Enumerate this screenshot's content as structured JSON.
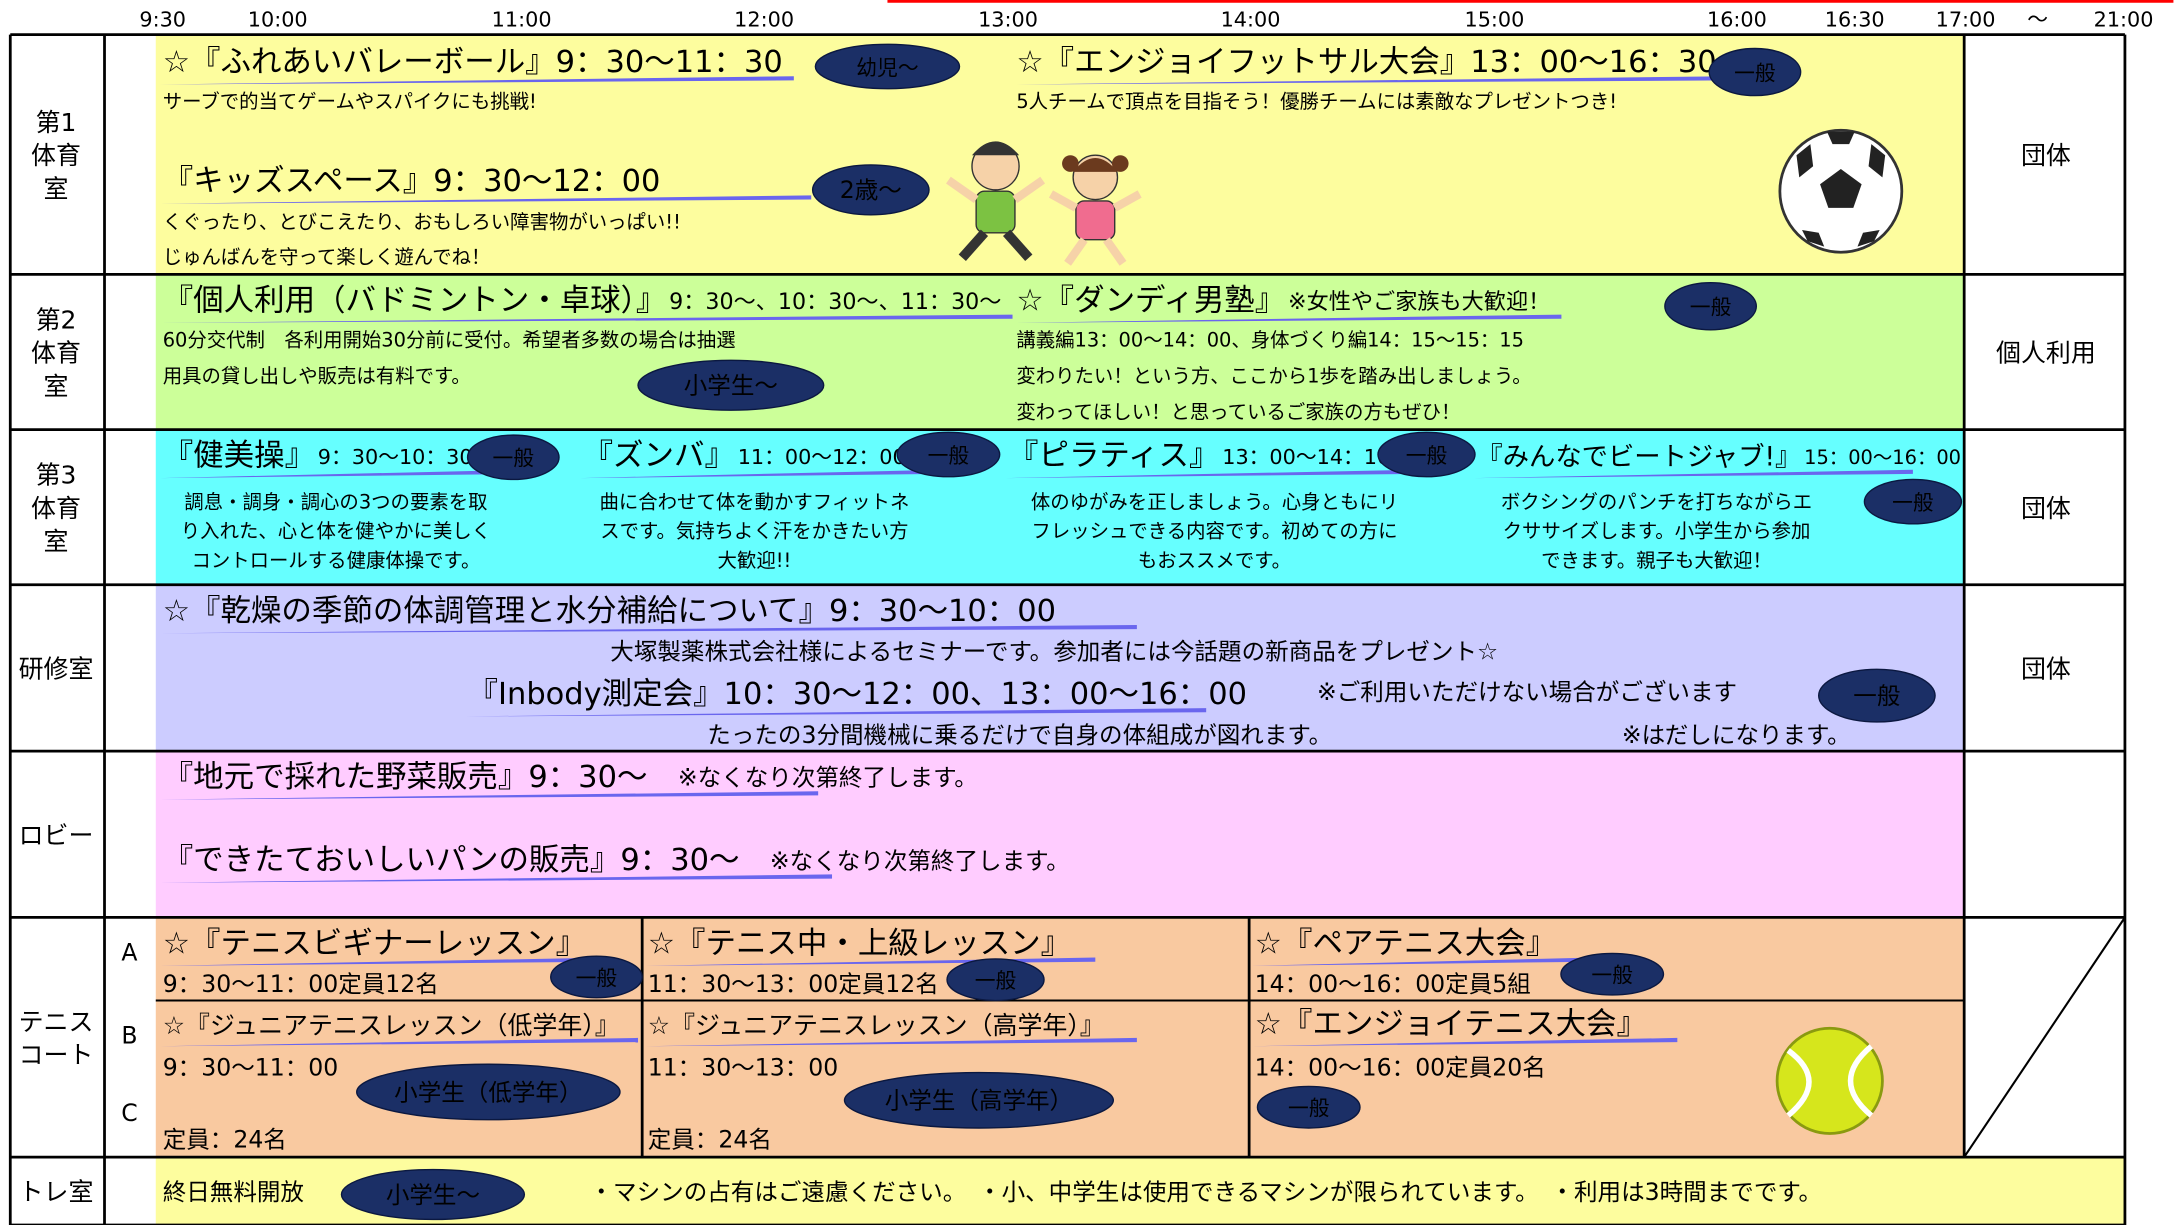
{
  "header": {
    "times": [
      "9:30",
      "10:00",
      "11:00",
      "12:00",
      "13:00",
      "14:00",
      "15:00",
      "16:00",
      "16:30",
      "17:00",
      "～",
      "21:00"
    ]
  },
  "rooms": [
    {
      "label": [
        "第1",
        "体育",
        "室"
      ],
      "usage": "団体",
      "events": [
        {
          "title": "☆『ふれあいバレーボール』9：30～11：30",
          "badge": "幼児～",
          "desc": [
            "サーブで的当てゲームやスパイクにも挑戦!"
          ]
        },
        {
          "title": "☆『エンジョイフットサル大会』13：00～16：30",
          "badge": "一般",
          "desc": [
            "5人チームで頂点を目指そう！優勝チームには素敵なプレゼントつき!"
          ]
        },
        {
          "title": "『キッズスペース』9：30～12：00",
          "badge": "2歳～",
          "desc": [
            "くぐったり、とびこえたり、おもしろい障害物がいっぱい!!",
            "じゅんばんを守って楽しく遊んでね！"
          ]
        }
      ]
    },
    {
      "label": [
        "第2",
        "体育",
        "室"
      ],
      "usage": "個人利用",
      "events": [
        {
          "title": "『個人利用（バドミントン・卓球）』",
          "time": "9：30～、10：30～、11：30～",
          "badge": "小学生～",
          "desc": [
            "60分交代制　各利用開始30分前に受付。希望者多数の場合は抽選",
            "用具の貸し出しや販売は有料です。"
          ]
        },
        {
          "title": "☆『ダンディ男塾』",
          "note": "※女性やご家族も大歓迎！",
          "badge": "一般",
          "desc": [
            "講義編13：00～14：00、身体づくり編14：15～15：15",
            "変わりたい！という方、ここから1歩を踏み出しましょう。",
            "変わってほしい！と思っているご家族の方もぜひ！"
          ]
        }
      ]
    },
    {
      "label": [
        "第3",
        "体育",
        "室"
      ],
      "usage": "団体",
      "events": [
        {
          "title": "『健美操』",
          "time": "9：30～10：30",
          "badge": "一般",
          "desc": [
            "調息・調身・調心の3つの要素を取",
            "り入れた、心と体を健やかに美しく",
            "コントロールする健康体操です。"
          ]
        },
        {
          "title": "『ズンバ』",
          "time": "11：00～12：00",
          "badge": "一般",
          "desc": [
            "曲に合わせて体を動かすフィットネ",
            "スです。気持ちよく汗をかきたい方",
            "大歓迎!!"
          ]
        },
        {
          "title": "『ピラティス』",
          "time": "13：00～14：10",
          "badge": "一般",
          "desc": [
            "体のゆがみを正しましょう。心身ともにリ",
            "フレッシュできる内容です。初めての方に",
            "もおススメです。"
          ]
        },
        {
          "title": "『みんなでビートジャブ!』",
          "time": "15：00～16：00",
          "badge": "一般",
          "desc": [
            "ボクシングのパンチを打ちながらエ",
            "クササイズします。小学生から参加",
            "できます。親子も大歓迎！"
          ]
        }
      ]
    },
    {
      "label": [
        "研修室"
      ],
      "usage": "団体",
      "events": [
        {
          "title": "☆『乾燥の季節の体調管理と水分補給について』9：30～10：00",
          "desc": [
            "大塚製薬株式会社様によるセミナーです。参加者には今話題の新商品をプレゼント☆"
          ]
        },
        {
          "title": "『Inbody測定会』10：30～12：00、13：00～16：00",
          "badge": "一般",
          "notes": [
            "※ご利用いただけない場合がございます",
            "※はだしになります。"
          ],
          "desc": [
            "たったの3分間機械に乗るだけで自身の体組成が図れます。"
          ]
        }
      ]
    },
    {
      "label": [
        "ロビー"
      ],
      "events": [
        {
          "title": "『地元で採れた野菜販売』9：30～",
          "note": "※なくなり次第終了します。"
        },
        {
          "title": "『できたておいしいパンの販売』9：30～",
          "note": "※なくなり次第終了します。"
        }
      ]
    },
    {
      "label": [
        "テニス",
        "コート"
      ],
      "courts": [
        "A",
        "B",
        "C"
      ],
      "events": [
        {
          "title": "☆『テニスビギナーレッスン』",
          "time": "9：30～11：00定員12名",
          "badge": "一般"
        },
        {
          "title": "☆『テニス中・上級レッスン』",
          "time": "11：30～13：00定員12名",
          "badge": "一般"
        },
        {
          "title": "☆『ペアテニス大会』",
          "time": "14：00～16：00定員5組",
          "badge": "一般"
        },
        {
          "title": "☆『ジュニアテニスレッスン（低学年）』",
          "time": "9：30～11：00",
          "badge": "小学生（低学年）",
          "capacity": "定員：24名"
        },
        {
          "title": "☆『ジュニアテニスレッスン（高学年）』",
          "time": "11：30～13：00",
          "badge": "小学生（高学年）",
          "capacity": "定員：24名"
        },
        {
          "title": "☆『エンジョイテニス大会』",
          "time": "14：00～16：00定員20名",
          "badge": "一般"
        }
      ]
    },
    {
      "label": [
        "トレ室"
      ],
      "events": [
        {
          "title": "終日無料開放",
          "badge": "小学生～",
          "note": "・マシンの占有はご遠慮ください。　・小、中学生は使用できるマシンが限られています。　・利用は3時間までです。"
        }
      ]
    }
  ]
}
